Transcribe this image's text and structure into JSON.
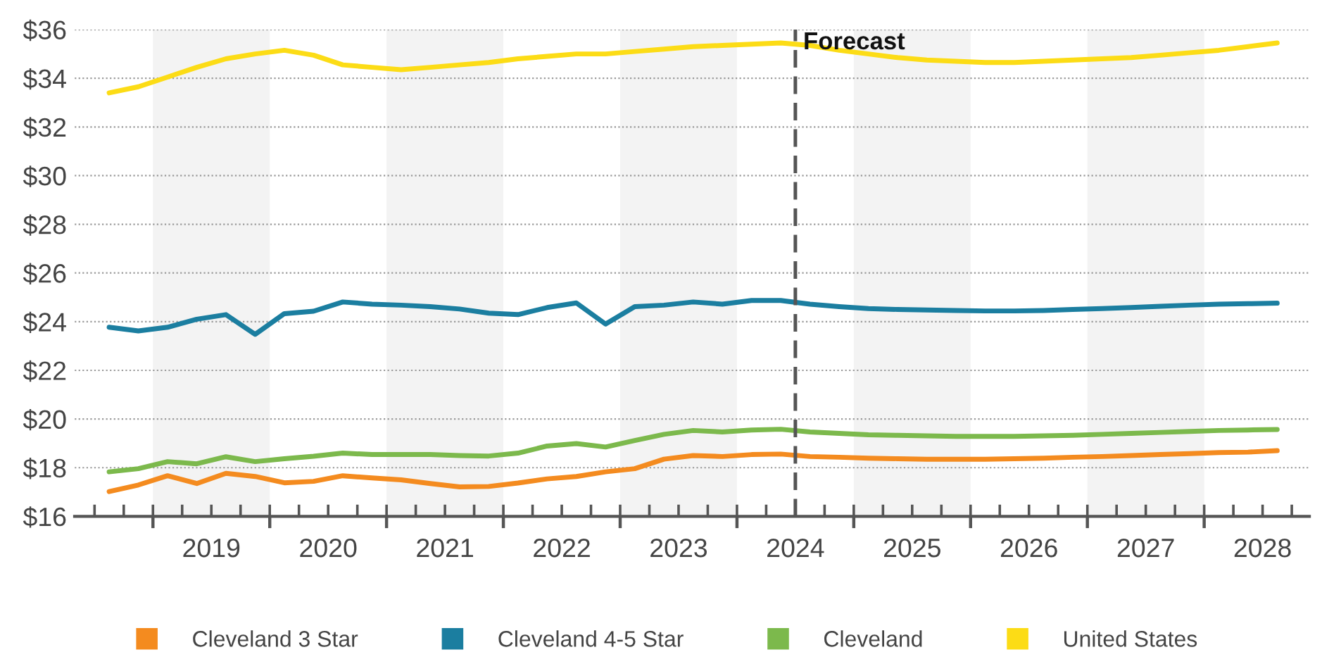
{
  "chart_data": {
    "type": "line",
    "x": [
      2018.625,
      2018.875,
      2019.125,
      2019.375,
      2019.625,
      2019.875,
      2020.125,
      2020.375,
      2020.625,
      2020.875,
      2021.125,
      2021.375,
      2021.625,
      2021.875,
      2022.125,
      2022.375,
      2022.625,
      2022.875,
      2023.125,
      2023.375,
      2023.625,
      2023.875,
      2024.125,
      2024.375,
      2024.625,
      2024.875,
      2025.125,
      2025.375,
      2025.625,
      2025.875,
      2026.125,
      2026.375,
      2026.625,
      2026.875,
      2027.125,
      2027.375,
      2027.625,
      2027.875,
      2028.125,
      2028.375,
      2028.625
    ],
    "xlim": [
      2018.33,
      2028.9
    ],
    "xticks": [
      {
        "value": 2018.5,
        "label": null
      },
      {
        "value": 2018.75,
        "label": null
      },
      {
        "value": 2019,
        "label": null
      },
      {
        "value": 2019.25,
        "label": null
      },
      {
        "value": 2019.5,
        "label": "2019"
      },
      {
        "value": 2019.75,
        "label": null
      },
      {
        "value": 2020,
        "label": null
      },
      {
        "value": 2020.25,
        "label": null
      },
      {
        "value": 2020.5,
        "label": "2020"
      },
      {
        "value": 2020.75,
        "label": null
      },
      {
        "value": 2021,
        "label": null
      },
      {
        "value": 2021.25,
        "label": null
      },
      {
        "value": 2021.5,
        "label": "2021"
      },
      {
        "value": 2021.75,
        "label": null
      },
      {
        "value": 2022,
        "label": null
      },
      {
        "value": 2022.25,
        "label": null
      },
      {
        "value": 2022.5,
        "label": "2022"
      },
      {
        "value": 2022.75,
        "label": null
      },
      {
        "value": 2023,
        "label": null
      },
      {
        "value": 2023.25,
        "label": null
      },
      {
        "value": 2023.5,
        "label": "2023"
      },
      {
        "value": 2023.75,
        "label": null
      },
      {
        "value": 2024,
        "label": null
      },
      {
        "value": 2024.25,
        "label": null
      },
      {
        "value": 2024.5,
        "label": "2024"
      },
      {
        "value": 2024.75,
        "label": null
      },
      {
        "value": 2025,
        "label": null
      },
      {
        "value": 2025.25,
        "label": null
      },
      {
        "value": 2025.5,
        "label": "2025"
      },
      {
        "value": 2025.75,
        "label": null
      },
      {
        "value": 2026,
        "label": null
      },
      {
        "value": 2026.25,
        "label": null
      },
      {
        "value": 2026.5,
        "label": "2026"
      },
      {
        "value": 2026.75,
        "label": null
      },
      {
        "value": 2027,
        "label": null
      },
      {
        "value": 2027.25,
        "label": null
      },
      {
        "value": 2027.5,
        "label": "2027"
      },
      {
        "value": 2027.75,
        "label": null
      },
      {
        "value": 2028,
        "label": null
      },
      {
        "value": 2028.25,
        "label": null
      },
      {
        "value": 2028.5,
        "label": "2028"
      },
      {
        "value": 2028.75,
        "label": null
      }
    ],
    "ylim": [
      16,
      36
    ],
    "yticks": [
      {
        "value": 16,
        "label": "$16"
      },
      {
        "value": 18,
        "label": "$18"
      },
      {
        "value": 20,
        "label": "$20"
      },
      {
        "value": 22,
        "label": "$22"
      },
      {
        "value": 24,
        "label": "$24"
      },
      {
        "value": 26,
        "label": "$26"
      },
      {
        "value": 28,
        "label": "$28"
      },
      {
        "value": 30,
        "label": "$30"
      },
      {
        "value": 32,
        "label": "$32"
      },
      {
        "value": 34,
        "label": "$34"
      },
      {
        "value": 36,
        "label": "$36"
      }
    ],
    "grid": "y",
    "legend": "bottom",
    "series": [
      {
        "name": "Cleveland 3 Star",
        "color": "#f48b1f",
        "values": [
          17.02,
          17.29,
          17.67,
          17.35,
          17.77,
          17.64,
          17.38,
          17.44,
          17.67,
          17.58,
          17.5,
          17.35,
          17.21,
          17.23,
          17.37,
          17.54,
          17.64,
          17.83,
          17.96,
          18.35,
          18.5,
          18.46,
          18.54,
          18.56,
          18.46,
          18.43,
          18.39,
          18.37,
          18.35,
          18.35,
          18.35,
          18.37,
          18.39,
          18.43,
          18.46,
          18.5,
          18.54,
          18.58,
          18.62,
          18.64,
          18.7
        ]
      },
      {
        "name": "Cleveland 4-5 Star",
        "color": "#1b7ea0",
        "values": [
          23.77,
          23.62,
          23.77,
          24.1,
          24.29,
          23.48,
          24.33,
          24.43,
          24.81,
          24.72,
          24.68,
          24.62,
          24.52,
          24.35,
          24.29,
          24.58,
          24.77,
          23.9,
          24.62,
          24.68,
          24.81,
          24.72,
          24.87,
          24.87,
          24.72,
          24.62,
          24.54,
          24.5,
          24.48,
          24.46,
          24.44,
          24.44,
          24.46,
          24.5,
          24.54,
          24.58,
          24.63,
          24.68,
          24.72,
          24.74,
          24.76
        ]
      },
      {
        "name": "Cleveland",
        "color": "#7cb94c",
        "values": [
          17.83,
          17.96,
          18.25,
          18.16,
          18.45,
          18.25,
          18.37,
          18.47,
          18.6,
          18.54,
          18.54,
          18.54,
          18.5,
          18.48,
          18.6,
          18.89,
          18.99,
          18.85,
          19.12,
          19.37,
          19.53,
          19.47,
          19.55,
          19.58,
          19.47,
          19.41,
          19.35,
          19.33,
          19.31,
          19.29,
          19.29,
          19.29,
          19.31,
          19.33,
          19.37,
          19.41,
          19.45,
          19.49,
          19.53,
          19.55,
          19.57
        ]
      },
      {
        "name": "United States",
        "color": "#fcdc16",
        "values": [
          33.4,
          33.65,
          34.05,
          34.45,
          34.8,
          35.0,
          35.15,
          34.95,
          34.55,
          34.45,
          34.35,
          34.45,
          34.55,
          34.65,
          34.8,
          34.9,
          35.0,
          35.0,
          35.1,
          35.2,
          35.3,
          35.35,
          35.4,
          35.45,
          35.35,
          35.15,
          35.0,
          34.85,
          34.75,
          34.7,
          34.65,
          34.65,
          34.7,
          34.75,
          34.8,
          34.85,
          34.95,
          35.05,
          35.15,
          35.3,
          35.45
        ]
      }
    ],
    "bands": [
      {
        "axis": "x",
        "from": 2019,
        "to": 2020,
        "color": "#f3f3f3"
      },
      {
        "axis": "x",
        "from": 2021,
        "to": 2022,
        "color": "#f3f3f3"
      },
      {
        "axis": "x",
        "from": 2023,
        "to": 2024,
        "color": "#f3f3f3"
      },
      {
        "axis": "x",
        "from": 2025,
        "to": 2026,
        "color": "#f3f3f3"
      },
      {
        "axis": "x",
        "from": 2027,
        "to": 2028,
        "color": "#f3f3f3"
      }
    ],
    "ref_lines": [
      {
        "axis": "x",
        "value": 2024.5,
        "label": "Forecast",
        "color": "#555555",
        "line_style": "dashed"
      }
    ]
  }
}
